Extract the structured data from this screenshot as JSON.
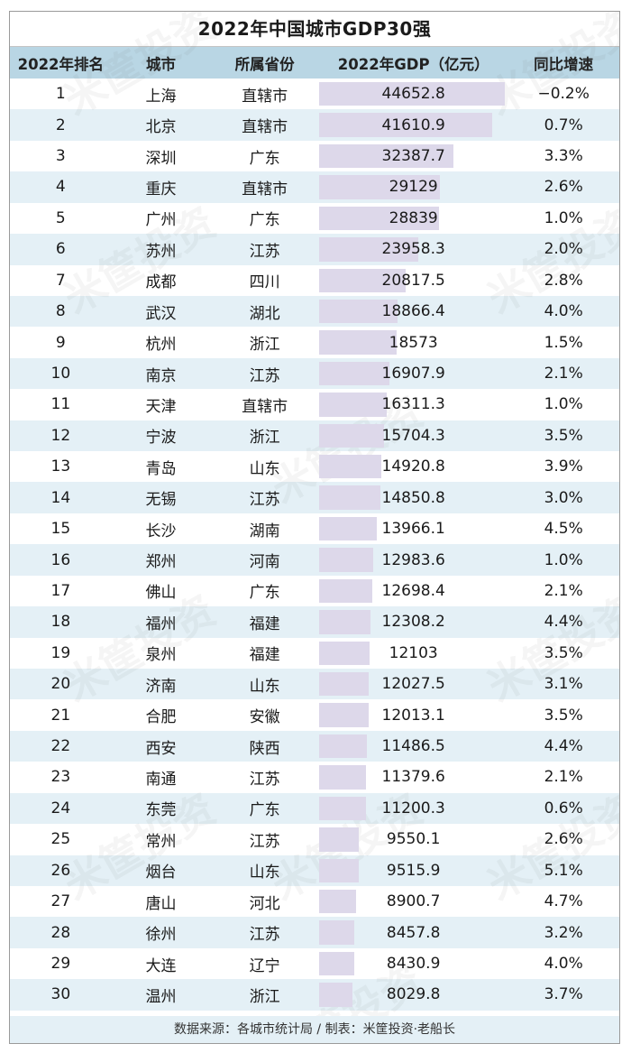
{
  "title": "2022年中国城市GDP30强",
  "headers": [
    "2022年排名",
    "城市",
    "所属省份",
    "2022年GDP（亿元）",
    "同比增速"
  ],
  "footer": "数据来源：各城市统计局 / 制表：米筐投资·老船长",
  "watermark": "米筐投资",
  "colors": {
    "header_bg": "#b9d6e4",
    "alt_row_bg": "#e4f0f6",
    "bar": "#ddd8ea"
  },
  "chart_data": {
    "type": "table",
    "title": "2022年中国城市GDP30强",
    "columns": [
      "2022年排名",
      "城市",
      "所属省份",
      "2022年GDP（亿元）",
      "同比增速"
    ],
    "rows": [
      {
        "rank": "1",
        "city": "上海",
        "province": "直辖市",
        "gdp": "44652.8",
        "growth": "−0.2%"
      },
      {
        "rank": "2",
        "city": "北京",
        "province": "直辖市",
        "gdp": "41610.9",
        "growth": "0.7%"
      },
      {
        "rank": "3",
        "city": "深圳",
        "province": "广东",
        "gdp": "32387.7",
        "growth": "3.3%"
      },
      {
        "rank": "4",
        "city": "重庆",
        "province": "直辖市",
        "gdp": "29129",
        "growth": "2.6%"
      },
      {
        "rank": "5",
        "city": "广州",
        "province": "广东",
        "gdp": "28839",
        "growth": "1.0%"
      },
      {
        "rank": "6",
        "city": "苏州",
        "province": "江苏",
        "gdp": "23958.3",
        "growth": "2.0%"
      },
      {
        "rank": "7",
        "city": "成都",
        "province": "四川",
        "gdp": "20817.5",
        "growth": "2.8%"
      },
      {
        "rank": "8",
        "city": "武汉",
        "province": "湖北",
        "gdp": "18866.4",
        "growth": "4.0%"
      },
      {
        "rank": "9",
        "city": "杭州",
        "province": "浙江",
        "gdp": "18573",
        "growth": "1.5%"
      },
      {
        "rank": "10",
        "city": "南京",
        "province": "江苏",
        "gdp": "16907.9",
        "growth": "2.1%"
      },
      {
        "rank": "11",
        "city": "天津",
        "province": "直辖市",
        "gdp": "16311.3",
        "growth": "1.0%"
      },
      {
        "rank": "12",
        "city": "宁波",
        "province": "浙江",
        "gdp": "15704.3",
        "growth": "3.5%"
      },
      {
        "rank": "13",
        "city": "青岛",
        "province": "山东",
        "gdp": "14920.8",
        "growth": "3.9%"
      },
      {
        "rank": "14",
        "city": "无锡",
        "province": "江苏",
        "gdp": "14850.8",
        "growth": "3.0%"
      },
      {
        "rank": "15",
        "city": "长沙",
        "province": "湖南",
        "gdp": "13966.1",
        "growth": "4.5%"
      },
      {
        "rank": "16",
        "city": "郑州",
        "province": "河南",
        "gdp": "12983.6",
        "growth": "1.0%"
      },
      {
        "rank": "17",
        "city": "佛山",
        "province": "广东",
        "gdp": "12698.4",
        "growth": "2.1%"
      },
      {
        "rank": "18",
        "city": "福州",
        "province": "福建",
        "gdp": "12308.2",
        "growth": "4.4%"
      },
      {
        "rank": "19",
        "city": "泉州",
        "province": "福建",
        "gdp": "12103",
        "growth": "3.5%"
      },
      {
        "rank": "20",
        "city": "济南",
        "province": "山东",
        "gdp": "12027.5",
        "growth": "3.1%"
      },
      {
        "rank": "21",
        "city": "合肥",
        "province": "安徽",
        "gdp": "12013.1",
        "growth": "3.5%"
      },
      {
        "rank": "22",
        "city": "西安",
        "province": "陕西",
        "gdp": "11486.5",
        "growth": "4.4%"
      },
      {
        "rank": "23",
        "city": "南通",
        "province": "江苏",
        "gdp": "11379.6",
        "growth": "2.1%"
      },
      {
        "rank": "24",
        "city": "东莞",
        "province": "广东",
        "gdp": "11200.3",
        "growth": "0.6%"
      },
      {
        "rank": "25",
        "city": "常州",
        "province": "江苏",
        "gdp": "9550.1",
        "growth": "2.6%"
      },
      {
        "rank": "26",
        "city": "烟台",
        "province": "山东",
        "gdp": "9515.9",
        "growth": "5.1%"
      },
      {
        "rank": "27",
        "city": "唐山",
        "province": "河北",
        "gdp": "8900.7",
        "growth": "4.7%"
      },
      {
        "rank": "28",
        "city": "徐州",
        "province": "江苏",
        "gdp": "8457.8",
        "growth": "3.2%"
      },
      {
        "rank": "29",
        "city": "大连",
        "province": "辽宁",
        "gdp": "8430.9",
        "growth": "4.0%"
      },
      {
        "rank": "30",
        "city": "温州",
        "province": "浙江",
        "gdp": "8029.8",
        "growth": "3.7%"
      }
    ]
  }
}
